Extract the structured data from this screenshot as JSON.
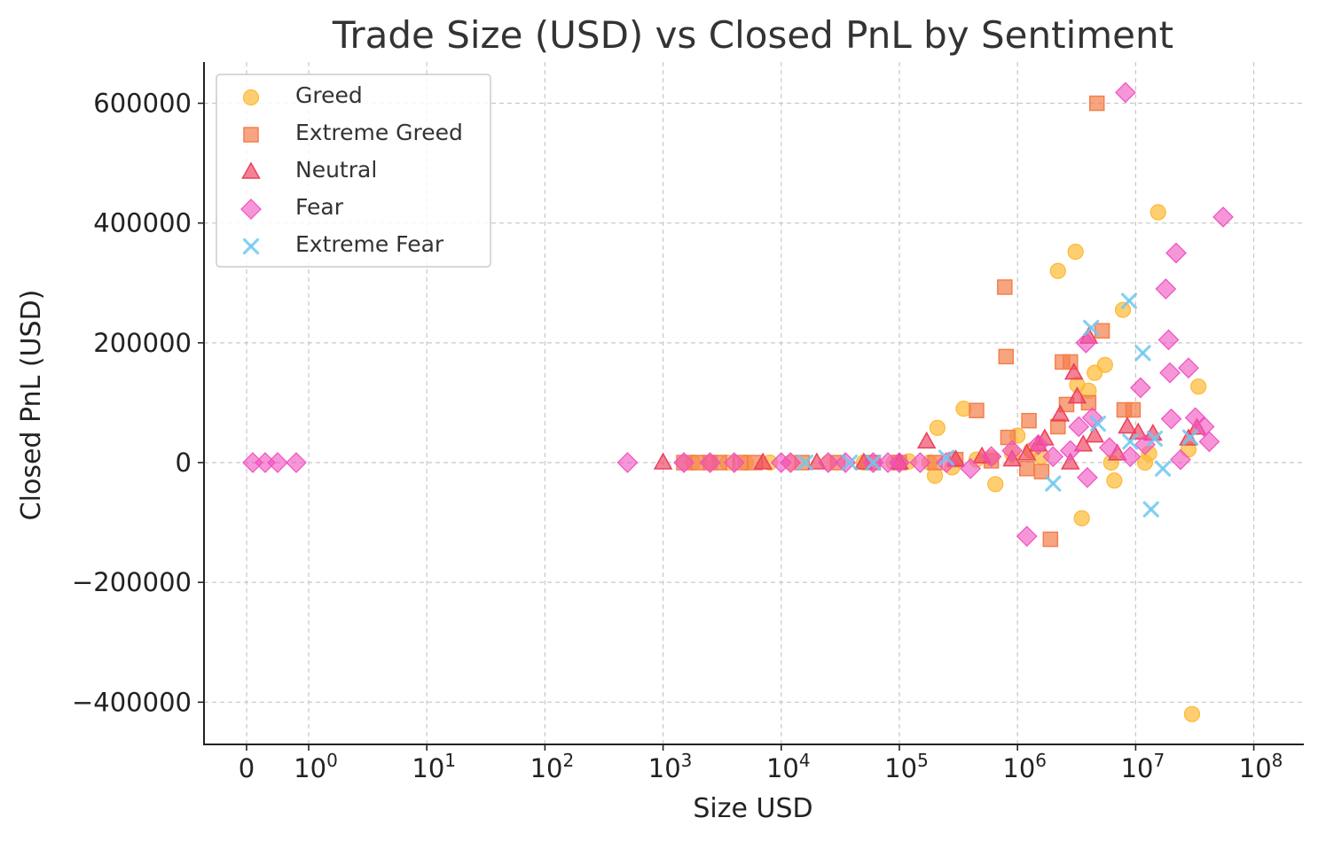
{
  "chart_data": {
    "type": "scatter",
    "title": "Trade Size (USD) vs Closed PnL by Sentiment",
    "xlabel": "Size USD",
    "ylabel": "Closed PnL (USD)",
    "xscale": "symlog",
    "xlim": [
      -0.5,
      160000000
    ],
    "ylim": [
      -470000,
      670000
    ],
    "grid": true,
    "legend_position": "top-left",
    "x_ticks": [
      {
        "value": 0,
        "base": "0",
        "exp": ""
      },
      {
        "value": 1,
        "base": "10",
        "exp": "0"
      },
      {
        "value": 10,
        "base": "10",
        "exp": "1"
      },
      {
        "value": 100,
        "base": "10",
        "exp": "2"
      },
      {
        "value": 1000,
        "base": "10",
        "exp": "3"
      },
      {
        "value": 10000,
        "base": "10",
        "exp": "4"
      },
      {
        "value": 100000,
        "base": "10",
        "exp": "5"
      },
      {
        "value": 1000000,
        "base": "10",
        "exp": "6"
      },
      {
        "value": 10000000,
        "base": "10",
        "exp": "7"
      },
      {
        "value": 100000000,
        "base": "10",
        "exp": "8"
      }
    ],
    "y_ticks": [
      {
        "value": 600000,
        "label": "600000"
      },
      {
        "value": 400000,
        "label": "400000"
      },
      {
        "value": 200000,
        "label": "200000"
      },
      {
        "value": 0,
        "label": "0"
      },
      {
        "value": -200000,
        "label": "−200000"
      },
      {
        "value": -400000,
        "label": "−400000"
      }
    ],
    "series": [
      {
        "name": "Greed",
        "marker": "circle",
        "color": "#FDB934",
        "points": [
          [
            1800,
            0
          ],
          [
            2500,
            0
          ],
          [
            3500,
            0
          ],
          [
            5000,
            0
          ],
          [
            8000,
            0
          ],
          [
            12000,
            0
          ],
          [
            25000,
            0
          ],
          [
            50000,
            0
          ],
          [
            90000,
            0
          ],
          [
            120000,
            2000
          ],
          [
            180000,
            0
          ],
          [
            210000,
            58000
          ],
          [
            200000,
            -22000
          ],
          [
            280000,
            -8000
          ],
          [
            350000,
            90000
          ],
          [
            450000,
            5000
          ],
          [
            600000,
            8000
          ],
          [
            650000,
            -36000
          ],
          [
            900000,
            15000
          ],
          [
            1000000,
            45000
          ],
          [
            1300000,
            20000
          ],
          [
            1600000,
            10000
          ],
          [
            2200000,
            320000
          ],
          [
            3100000,
            352000
          ],
          [
            3200000,
            130000
          ],
          [
            3500000,
            -93000
          ],
          [
            4000000,
            120000
          ],
          [
            4500000,
            150000
          ],
          [
            5500000,
            163000
          ],
          [
            6200000,
            0
          ],
          [
            6600000,
            -30000
          ],
          [
            7800000,
            255000
          ],
          [
            12000000,
            0
          ],
          [
            13000000,
            15000
          ],
          [
            15500000,
            418000
          ],
          [
            28000000,
            22000
          ],
          [
            30000000,
            -420000
          ],
          [
            34000000,
            127000
          ]
        ]
      },
      {
        "name": "Extreme Greed",
        "marker": "square",
        "color": "#F47F4C",
        "points": [
          [
            1500,
            0
          ],
          [
            2000,
            0
          ],
          [
            2500,
            0
          ],
          [
            3000,
            0
          ],
          [
            4500,
            0
          ],
          [
            6000,
            0
          ],
          [
            15000,
            0
          ],
          [
            30000,
            0
          ],
          [
            60000,
            0
          ],
          [
            100000,
            0
          ],
          [
            200000,
            0
          ],
          [
            300000,
            5000
          ],
          [
            450000,
            87000
          ],
          [
            600000,
            3000
          ],
          [
            780000,
            293000
          ],
          [
            800000,
            177000
          ],
          [
            830000,
            42000
          ],
          [
            1200000,
            -10000
          ],
          [
            1250000,
            70000
          ],
          [
            1600000,
            -15000
          ],
          [
            1900000,
            -128000
          ],
          [
            2200000,
            60000
          ],
          [
            2400000,
            168000
          ],
          [
            2600000,
            97000
          ],
          [
            2800000,
            168000
          ],
          [
            4000000,
            100000
          ],
          [
            4700000,
            600000
          ],
          [
            5200000,
            220000
          ],
          [
            8000000,
            88000
          ],
          [
            9500000,
            88000
          ]
        ]
      },
      {
        "name": "Neutral",
        "marker": "triangle",
        "color": "#EC3F5C",
        "points": [
          [
            1000,
            0
          ],
          [
            7000,
            0
          ],
          [
            20000,
            0
          ],
          [
            50000,
            0
          ],
          [
            100000,
            0
          ],
          [
            170000,
            35000
          ],
          [
            300000,
            5000
          ],
          [
            500000,
            10000
          ],
          [
            900000,
            5000
          ],
          [
            1200000,
            15000
          ],
          [
            1500000,
            30000
          ],
          [
            1700000,
            40000
          ],
          [
            2300000,
            80000
          ],
          [
            2800000,
            0
          ],
          [
            3000000,
            150000
          ],
          [
            3200000,
            110000
          ],
          [
            3600000,
            30000
          ],
          [
            4000000,
            210000
          ],
          [
            4500000,
            45000
          ],
          [
            7000000,
            15000
          ],
          [
            8500000,
            60000
          ],
          [
            10500000,
            50000
          ],
          [
            14000000,
            48000
          ],
          [
            28000000,
            40000
          ],
          [
            33000000,
            58000
          ]
        ]
      },
      {
        "name": "Fear",
        "marker": "diamond",
        "color": "#F050C0",
        "points": [
          [
            0.1,
            0
          ],
          [
            0.3,
            0
          ],
          [
            0.5,
            0
          ],
          [
            0.8,
            0
          ],
          [
            500,
            0
          ],
          [
            1500,
            0
          ],
          [
            2500,
            0
          ],
          [
            4000,
            0
          ],
          [
            10000,
            0
          ],
          [
            12000,
            0
          ],
          [
            25000,
            0
          ],
          [
            35000,
            0
          ],
          [
            60000,
            0
          ],
          [
            80000,
            0
          ],
          [
            100000,
            0
          ],
          [
            150000,
            0
          ],
          [
            250000,
            0
          ],
          [
            400000,
            -10000
          ],
          [
            600000,
            10000
          ],
          [
            900000,
            20000
          ],
          [
            1200000,
            -123000
          ],
          [
            1500000,
            30000
          ],
          [
            2000000,
            10000
          ],
          [
            2800000,
            20000
          ],
          [
            3300000,
            60000
          ],
          [
            3800000,
            200000
          ],
          [
            3900000,
            -25000
          ],
          [
            4300000,
            75000
          ],
          [
            6000000,
            25000
          ],
          [
            8200000,
            618000
          ],
          [
            9000000,
            10000
          ],
          [
            11000000,
            125000
          ],
          [
            12000000,
            30000
          ],
          [
            18000000,
            290000
          ],
          [
            19000000,
            205000
          ],
          [
            19500000,
            150000
          ],
          [
            20000000,
            73000
          ],
          [
            22000000,
            350000
          ],
          [
            24000000,
            5000
          ],
          [
            28000000,
            158000
          ],
          [
            32000000,
            75000
          ],
          [
            38000000,
            60000
          ],
          [
            42000000,
            35000
          ],
          [
            55000000,
            410000
          ]
        ]
      },
      {
        "name": "Extreme Fear",
        "marker": "x",
        "color": "#6EC8F0",
        "points": [
          [
            16000,
            0
          ],
          [
            38000,
            0
          ],
          [
            60000,
            0
          ],
          [
            250000,
            8000
          ],
          [
            2000000,
            -35000
          ],
          [
            4200000,
            225000
          ],
          [
            4800000,
            65000
          ],
          [
            8800000,
            270000
          ],
          [
            9000000,
            35000
          ],
          [
            11500000,
            183000
          ],
          [
            13500000,
            -78000
          ],
          [
            14500000,
            40000
          ],
          [
            17000000,
            -10000
          ],
          [
            29000000,
            42000
          ]
        ]
      }
    ]
  }
}
